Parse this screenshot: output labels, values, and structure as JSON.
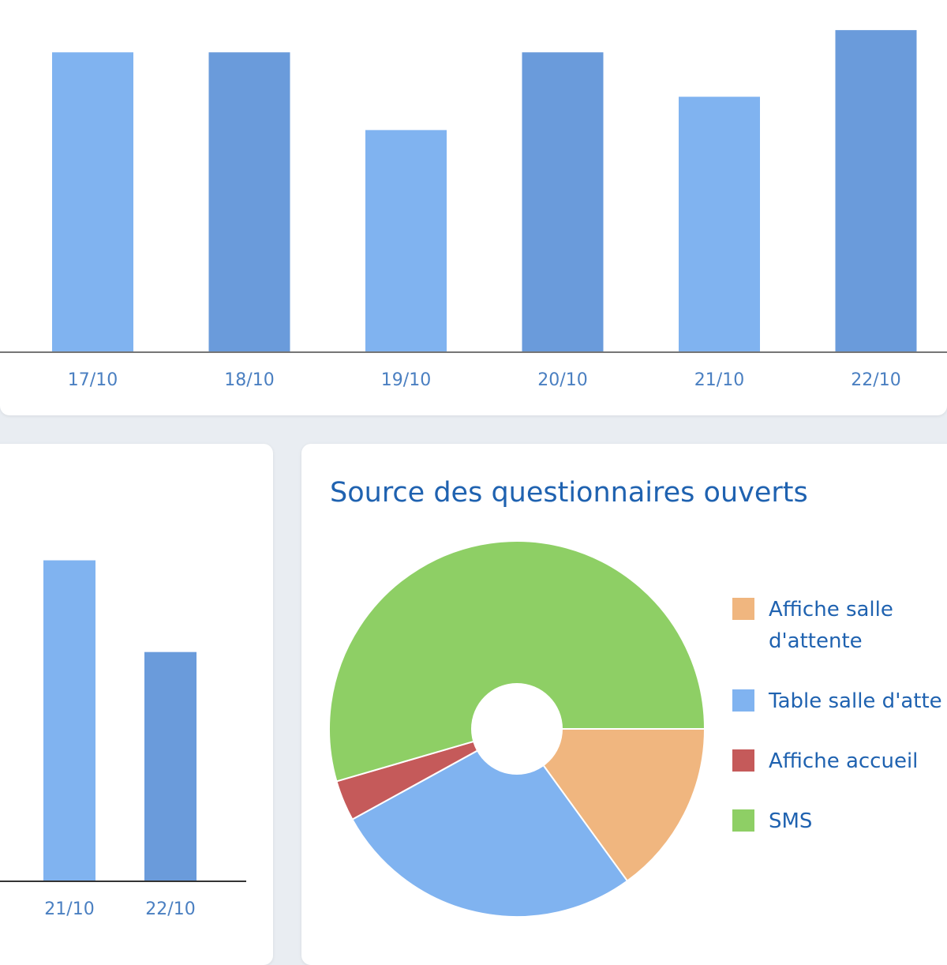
{
  "chart_data": [
    {
      "type": "bar",
      "categories": [
        "17/10",
        "18/10",
        "19/10",
        "20/10",
        "21/10",
        "22/10"
      ],
      "values": [
        135,
        135,
        100,
        135,
        115,
        145
      ],
      "ylim": [
        0,
        155
      ],
      "colors": [
        "#80b3f0",
        "#6a9bdb",
        "#80b3f0",
        "#6a9bdb",
        "#80b3f0",
        "#6a9bdb"
      ],
      "axis_color": "#757575",
      "grid": false
    },
    {
      "type": "bar",
      "categories": [
        "21/10",
        "22/10"
      ],
      "values": [
        140,
        100
      ],
      "ylim": [
        0,
        155
      ],
      "colors": [
        "#80b3f0",
        "#6a9bdb"
      ],
      "axis_color": "#333333",
      "grid": false
    },
    {
      "type": "pie",
      "title": "Source des questionnaires ouverts",
      "donut": true,
      "labels": [
        "Affiche salle d'attente",
        "Table salle d'attente",
        "Affiche accueil",
        "SMS"
      ],
      "legend_labels": [
        "Affiche salle\nd'attente",
        "Table salle d'atte",
        "Affiche accueil",
        "SMS"
      ],
      "values": [
        15,
        27,
        3.5,
        54.5
      ],
      "colors": [
        "#f0b67f",
        "#80b3f0",
        "#c55a5a",
        "#8ecf65"
      ],
      "legend": "right"
    }
  ]
}
